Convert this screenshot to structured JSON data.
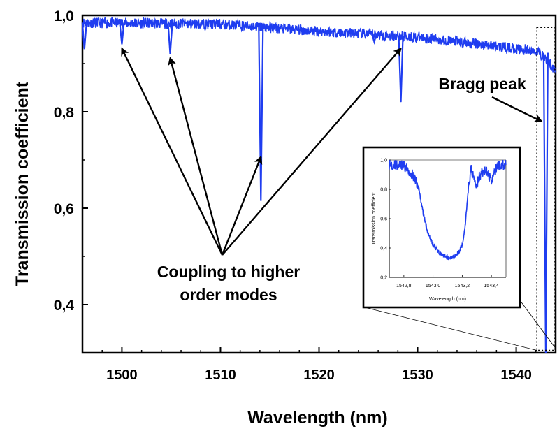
{
  "chart_data": [
    {
      "type": "line",
      "xlabel": "Wavelength (nm)",
      "ylabel": "Transmission coefficient",
      "xlim": [
        1496,
        1544
      ],
      "ylim": [
        0.3,
        1.0
      ],
      "x_ticks": [
        1500,
        1510,
        1520,
        1530,
        1540
      ],
      "x_tick_labels": [
        "1500",
        "1510",
        "1520",
        "1530",
        "1540"
      ],
      "y_ticks": [
        0.4,
        0.6,
        0.8,
        1.0
      ],
      "y_tick_labels": [
        "0,4",
        "0,6",
        "0,8",
        "1,0"
      ],
      "grid": false,
      "series_color": "#1f3df0",
      "baseline": [
        [
          1496.0,
          0.985
        ],
        [
          1510.0,
          0.982
        ],
        [
          1520.0,
          0.967
        ],
        [
          1530.0,
          0.955
        ],
        [
          1538.0,
          0.936
        ],
        [
          1542.0,
          0.925
        ],
        [
          1544.0,
          0.92
        ]
      ],
      "dips": [
        {
          "x": 1496.2,
          "y": 0.93
        },
        {
          "x": 1500.0,
          "y": 0.94
        },
        {
          "x": 1504.9,
          "y": 0.92
        },
        {
          "x": 1514.1,
          "y": 0.615
        },
        {
          "x": 1525.6,
          "y": 0.945
        },
        {
          "x": 1528.3,
          "y": 0.82
        },
        {
          "x": 1543.0,
          "y": 0.3
        }
      ],
      "annotations": [
        {
          "text": "Bragg peak",
          "arrow_to": {
            "x": 1543.0,
            "y": 0.78
          }
        },
        {
          "text": "Coupling to higher\norder modes",
          "arrows_to": [
            {
              "x": 1500.0,
              "y": 0.94
            },
            {
              "x": 1504.9,
              "y": 0.92
            },
            {
              "x": 1514.1,
              "y": 0.715
            },
            {
              "x": 1528.3,
              "y": 0.94
            }
          ]
        }
      ]
    },
    {
      "type": "line",
      "role": "inset",
      "xlabel": "Wavelength (nm)",
      "ylabel": "Transmission coefficient",
      "xlim": [
        1542.7,
        1543.5
      ],
      "ylim": [
        0.2,
        1.0
      ],
      "x_ticks": [
        1542.8,
        1543.0,
        1543.2,
        1543.4
      ],
      "x_tick_labels": [
        "1542,8",
        "1543,0",
        "1543,2",
        "1543,4"
      ],
      "y_ticks": [
        0.2,
        0.4,
        0.6,
        0.8,
        1.0
      ],
      "y_tick_labels": [
        "0,2",
        "0,4",
        "0,6",
        "0,8",
        "1,0"
      ],
      "series_color": "#1f3df0",
      "x": [
        1542.7,
        1542.8,
        1542.86,
        1542.9,
        1542.93,
        1542.96,
        1543.0,
        1543.04,
        1543.08,
        1543.12,
        1543.16,
        1543.2,
        1543.22,
        1543.24,
        1543.26,
        1543.28,
        1543.3,
        1543.32,
        1543.36,
        1543.4,
        1543.44,
        1543.5
      ],
      "y": [
        0.97,
        0.96,
        0.9,
        0.82,
        0.65,
        0.52,
        0.42,
        0.37,
        0.34,
        0.33,
        0.35,
        0.42,
        0.55,
        0.78,
        0.94,
        0.88,
        0.83,
        0.9,
        0.93,
        0.86,
        0.96,
        0.97
      ]
    }
  ]
}
